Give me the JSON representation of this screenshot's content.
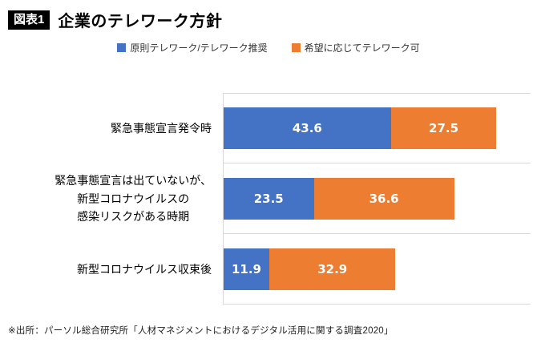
{
  "header": {
    "badge": "図表1",
    "title": "企業のテレワーク方針"
  },
  "legend": [
    {
      "label": "原則テレワーク/テレワーク推奨",
      "color": "#4472c4"
    },
    {
      "label": "希望に応じてテレワーク可",
      "color": "#ed7d31"
    }
  ],
  "chart_data": {
    "type": "bar",
    "orientation": "horizontal",
    "stacked": true,
    "title": "企業のテレワーク方針",
    "categories": [
      "緊急事態宣言発令時",
      "緊急事態宣言は出ていないが、\n新型コロナウイルスの\n感染リスクがある時期",
      "新型コロナウイルス収束後"
    ],
    "series": [
      {
        "name": "原則テレワーク/テレワーク推奨",
        "color": "#4472c4",
        "values": [
          43.6,
          23.5,
          11.9
        ]
      },
      {
        "name": "希望に応じてテレワーク可",
        "color": "#ed7d31",
        "values": [
          27.5,
          36.6,
          32.9
        ]
      }
    ],
    "xlim": [
      0,
      80
    ],
    "value_labels": true,
    "grid": "category-boundaries",
    "legend_position": "top"
  },
  "footer": {
    "source": "※出所：パーソル総合研究所「人材マネジメントにおけるデジタル活用に関する調査2020」"
  }
}
